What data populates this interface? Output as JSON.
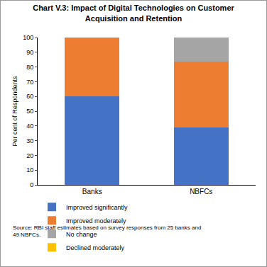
{
  "chart_data": {
    "type": "bar",
    "title": [
      "Chart V.3: Impact of Digital Technologies on Customer",
      "Acquisition and Retention"
    ],
    "y_label": "Per cent of Respondents",
    "categories": [
      "Banks",
      "NBFCs"
    ],
    "series": [
      {
        "name": "Improved significantly",
        "color": "#4472c4",
        "values": [
          60,
          38.8
        ]
      },
      {
        "name": "Improved moderately",
        "color": "#ed7d31",
        "values": [
          40,
          44.9
        ]
      },
      {
        "name": "No change",
        "color": "#a5a5a5",
        "values": [
          0,
          16.3
        ]
      },
      {
        "name": "Declined moderately",
        "color": "#ffc000",
        "values": [
          0,
          0
        ]
      }
    ],
    "stacked": true,
    "ylim": [
      0,
      100
    ],
    "yticks": [
      0,
      10,
      20,
      30,
      40,
      50,
      60,
      70,
      80,
      90,
      100
    ],
    "grid": false,
    "legend": "bottom",
    "annotations": [
      "Source: RBI staff estimates based on survey responses from 25 banks and",
      "49 NBFCs."
    ]
  }
}
